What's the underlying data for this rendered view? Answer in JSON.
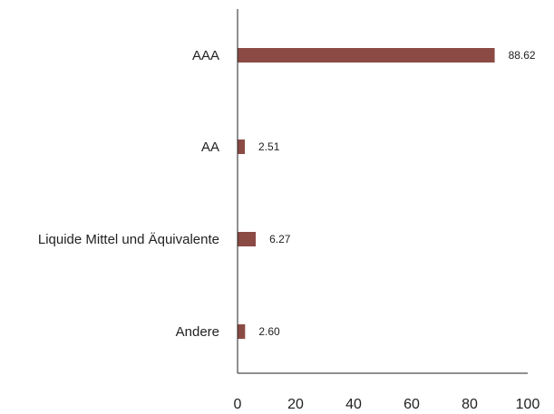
{
  "chart_data": {
    "type": "bar",
    "orientation": "horizontal",
    "categories": [
      "AAA",
      "AA",
      "Liquide Mittel und Äquivalente",
      "Andere"
    ],
    "values": [
      88.62,
      2.51,
      6.27,
      2.6
    ],
    "data_labels": [
      "88.62",
      "2.51",
      "6.27",
      "2.60"
    ],
    "title": "",
    "xlabel": "",
    "ylabel": "",
    "xlim": [
      0,
      100
    ],
    "x_ticks": [
      0,
      20,
      40,
      60,
      80,
      100
    ],
    "x_tick_labels": [
      "0",
      "20",
      "40",
      "60",
      "80",
      "100"
    ],
    "grid": false,
    "legend": "none",
    "bar_color": "#8B4A44",
    "axis_color": "#222222"
  }
}
